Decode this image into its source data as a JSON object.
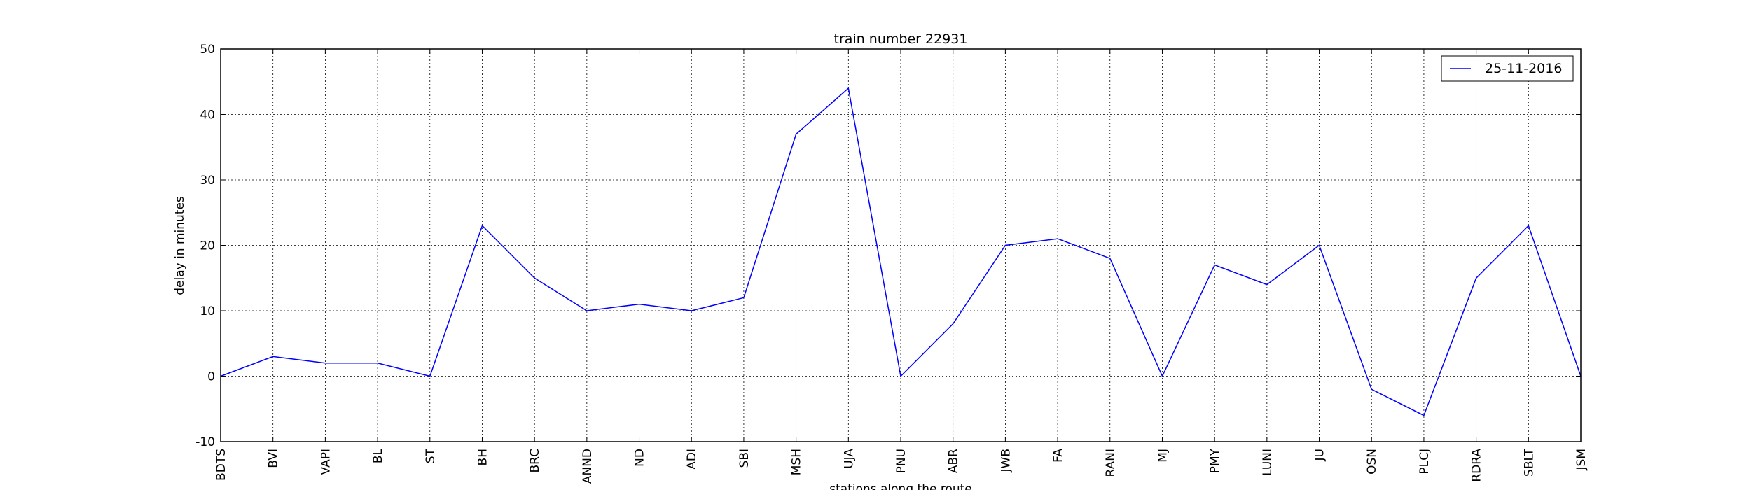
{
  "chart_data": {
    "type": "line",
    "title": "train number 22931",
    "xlabel": "stations along the route",
    "ylabel": "delay in minutes",
    "categories": [
      "BDTS",
      "BVI",
      "VAPI",
      "BL",
      "ST",
      "BH",
      "BRC",
      "ANND",
      "ND",
      "ADI",
      "SBI",
      "MSH",
      "UJA",
      "PNU",
      "ABR",
      "JWB",
      "FA",
      "RANI",
      "MJ",
      "PMY",
      "LUNI",
      "JU",
      "OSN",
      "PLCJ",
      "RDRA",
      "SBLT",
      "JSM"
    ],
    "series": [
      {
        "name": "25-11-2016",
        "color": "#0000ff",
        "values": [
          0,
          3,
          2,
          2,
          0,
          23,
          15,
          10,
          11,
          10,
          12,
          37,
          44,
          0,
          8,
          20,
          21,
          18,
          0,
          17,
          14,
          20,
          -2,
          -6,
          15,
          23,
          0
        ]
      }
    ],
    "ylim": [
      -10,
      50
    ],
    "yticks": [
      -10,
      0,
      10,
      20,
      30,
      40,
      50
    ],
    "grid": true,
    "legend": "top-right"
  }
}
